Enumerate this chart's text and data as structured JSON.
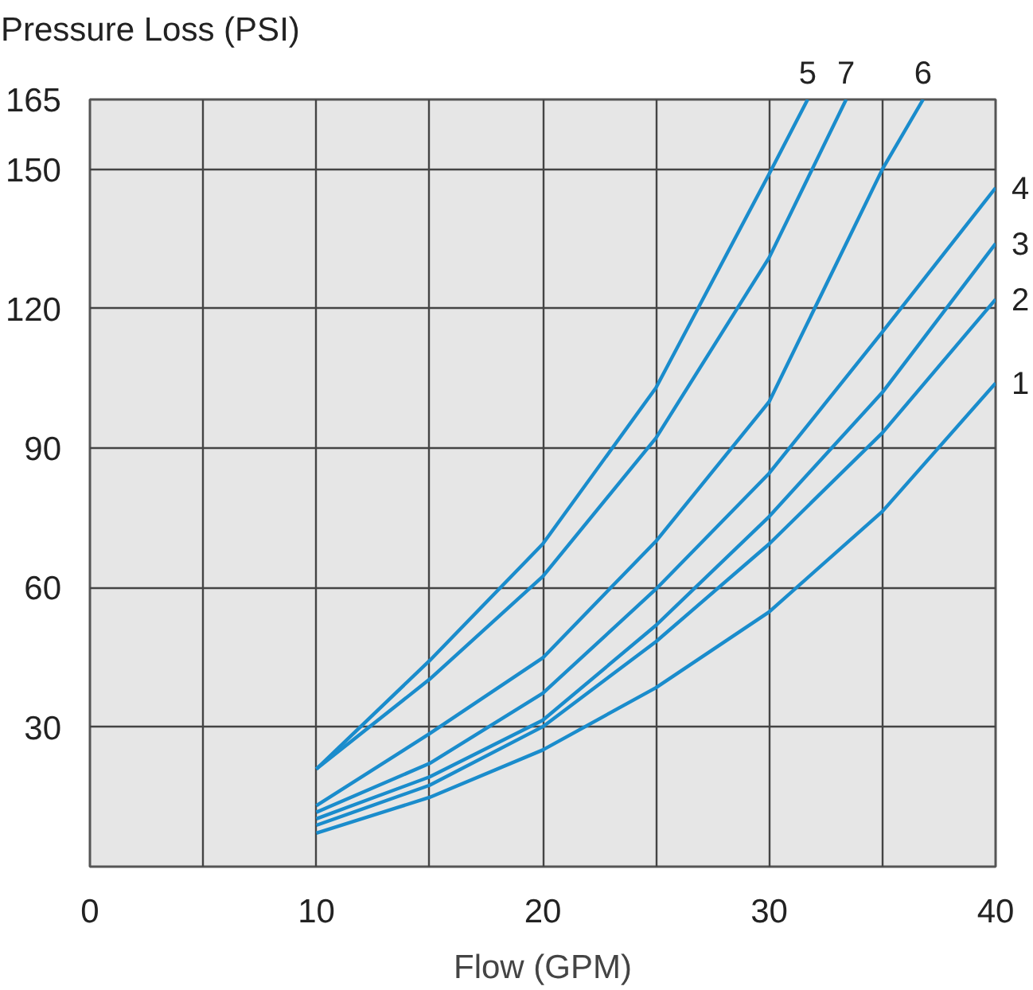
{
  "chart_data": {
    "type": "line",
    "xlabel": "Flow (GPM)",
    "ylabel": "Pressure Loss (PSI)",
    "xlim": [
      0,
      40
    ],
    "ylim": [
      0,
      165
    ],
    "xticks": [
      0,
      {
        "value": 5,
        "label": null
      },
      10,
      {
        "value": 15,
        "label": null
      },
      20,
      {
        "value": 25,
        "label": null
      },
      30,
      {
        "value": 35,
        "label": null
      },
      40
    ],
    "yticks": [
      30,
      60,
      90,
      120,
      150,
      165
    ],
    "grid": true,
    "marker": "none",
    "line_style": "solid",
    "series": [
      {
        "name": "1",
        "color": "#1a8ccc",
        "x": [
          10,
          15,
          20,
          25,
          30,
          35,
          40
        ],
        "values": [
          7.2,
          14.9,
          25.1,
          38.5,
          54.8,
          76.4,
          104
        ]
      },
      {
        "name": "2",
        "color": "#1a8ccc",
        "x": [
          10,
          15,
          20,
          25,
          30,
          35,
          40
        ],
        "values": [
          8.9,
          17.5,
          30.1,
          48.4,
          69.4,
          93.3,
          122
        ]
      },
      {
        "name": "3",
        "color": "#1a8ccc",
        "x": [
          10,
          15,
          20,
          25,
          30,
          35,
          40
        ],
        "values": [
          10.3,
          19.3,
          31.5,
          51.9,
          75.3,
          102,
          134
        ]
      },
      {
        "name": "4",
        "color": "#1a8ccc",
        "x": [
          10,
          15,
          20,
          25,
          30,
          35,
          40
        ],
        "values": [
          11.7,
          22.2,
          37.3,
          59.7,
          84.6,
          115,
          146
        ]
      },
      {
        "name": "5",
        "color": "#1a8ccc",
        "x": [
          10,
          15,
          20,
          25,
          30,
          31.7
        ],
        "values": [
          21,
          44.3,
          69.4,
          103,
          149,
          165
        ]
      },
      {
        "name": "7",
        "color": "#1a8ccc",
        "x": [
          10,
          15,
          20,
          25,
          30,
          33.4
        ],
        "values": [
          21,
          40.3,
          62.4,
          92.2,
          131,
          165
        ]
      },
      {
        "name": "6",
        "color": "#1a8ccc",
        "x": [
          10,
          15,
          20,
          25,
          30,
          35,
          36.8
        ],
        "values": [
          13.1,
          28.6,
          44.9,
          70,
          100,
          150,
          165
        ]
      }
    ]
  }
}
